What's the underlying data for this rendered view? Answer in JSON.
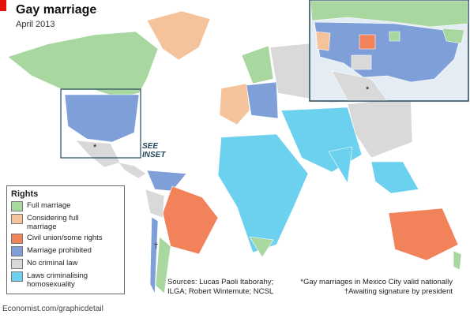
{
  "header": {
    "title": "Gay marriage",
    "subtitle": "April 2013"
  },
  "map": {
    "inset_note": "SEE INSET",
    "mexico_marker": "*",
    "argentina_marker": "†"
  },
  "legend": {
    "title": "Rights",
    "items": [
      {
        "label": "Full marriage",
        "color": "#a9d7a0"
      },
      {
        "label": "Considering full marriage",
        "color": "#f4c39c"
      },
      {
        "label": "Civil union/some rights",
        "color": "#f2825a"
      },
      {
        "label": "Marriage prohibited",
        "color": "#7f9fd8"
      },
      {
        "label": "No criminal law",
        "color": "#d9d9d9"
      },
      {
        "label": "Laws criminalising homosexuality",
        "color": "#6cd0ef"
      }
    ]
  },
  "sources": "Sources: Lucas Paoli Itaborahy; ILGA; Robert Wintemute; NCSL",
  "footnotes": [
    "*Gay marriages in Mexico City valid nationally",
    "†Awaiting signature by president"
  ],
  "footer": "Economist.com/graphicdetail"
}
